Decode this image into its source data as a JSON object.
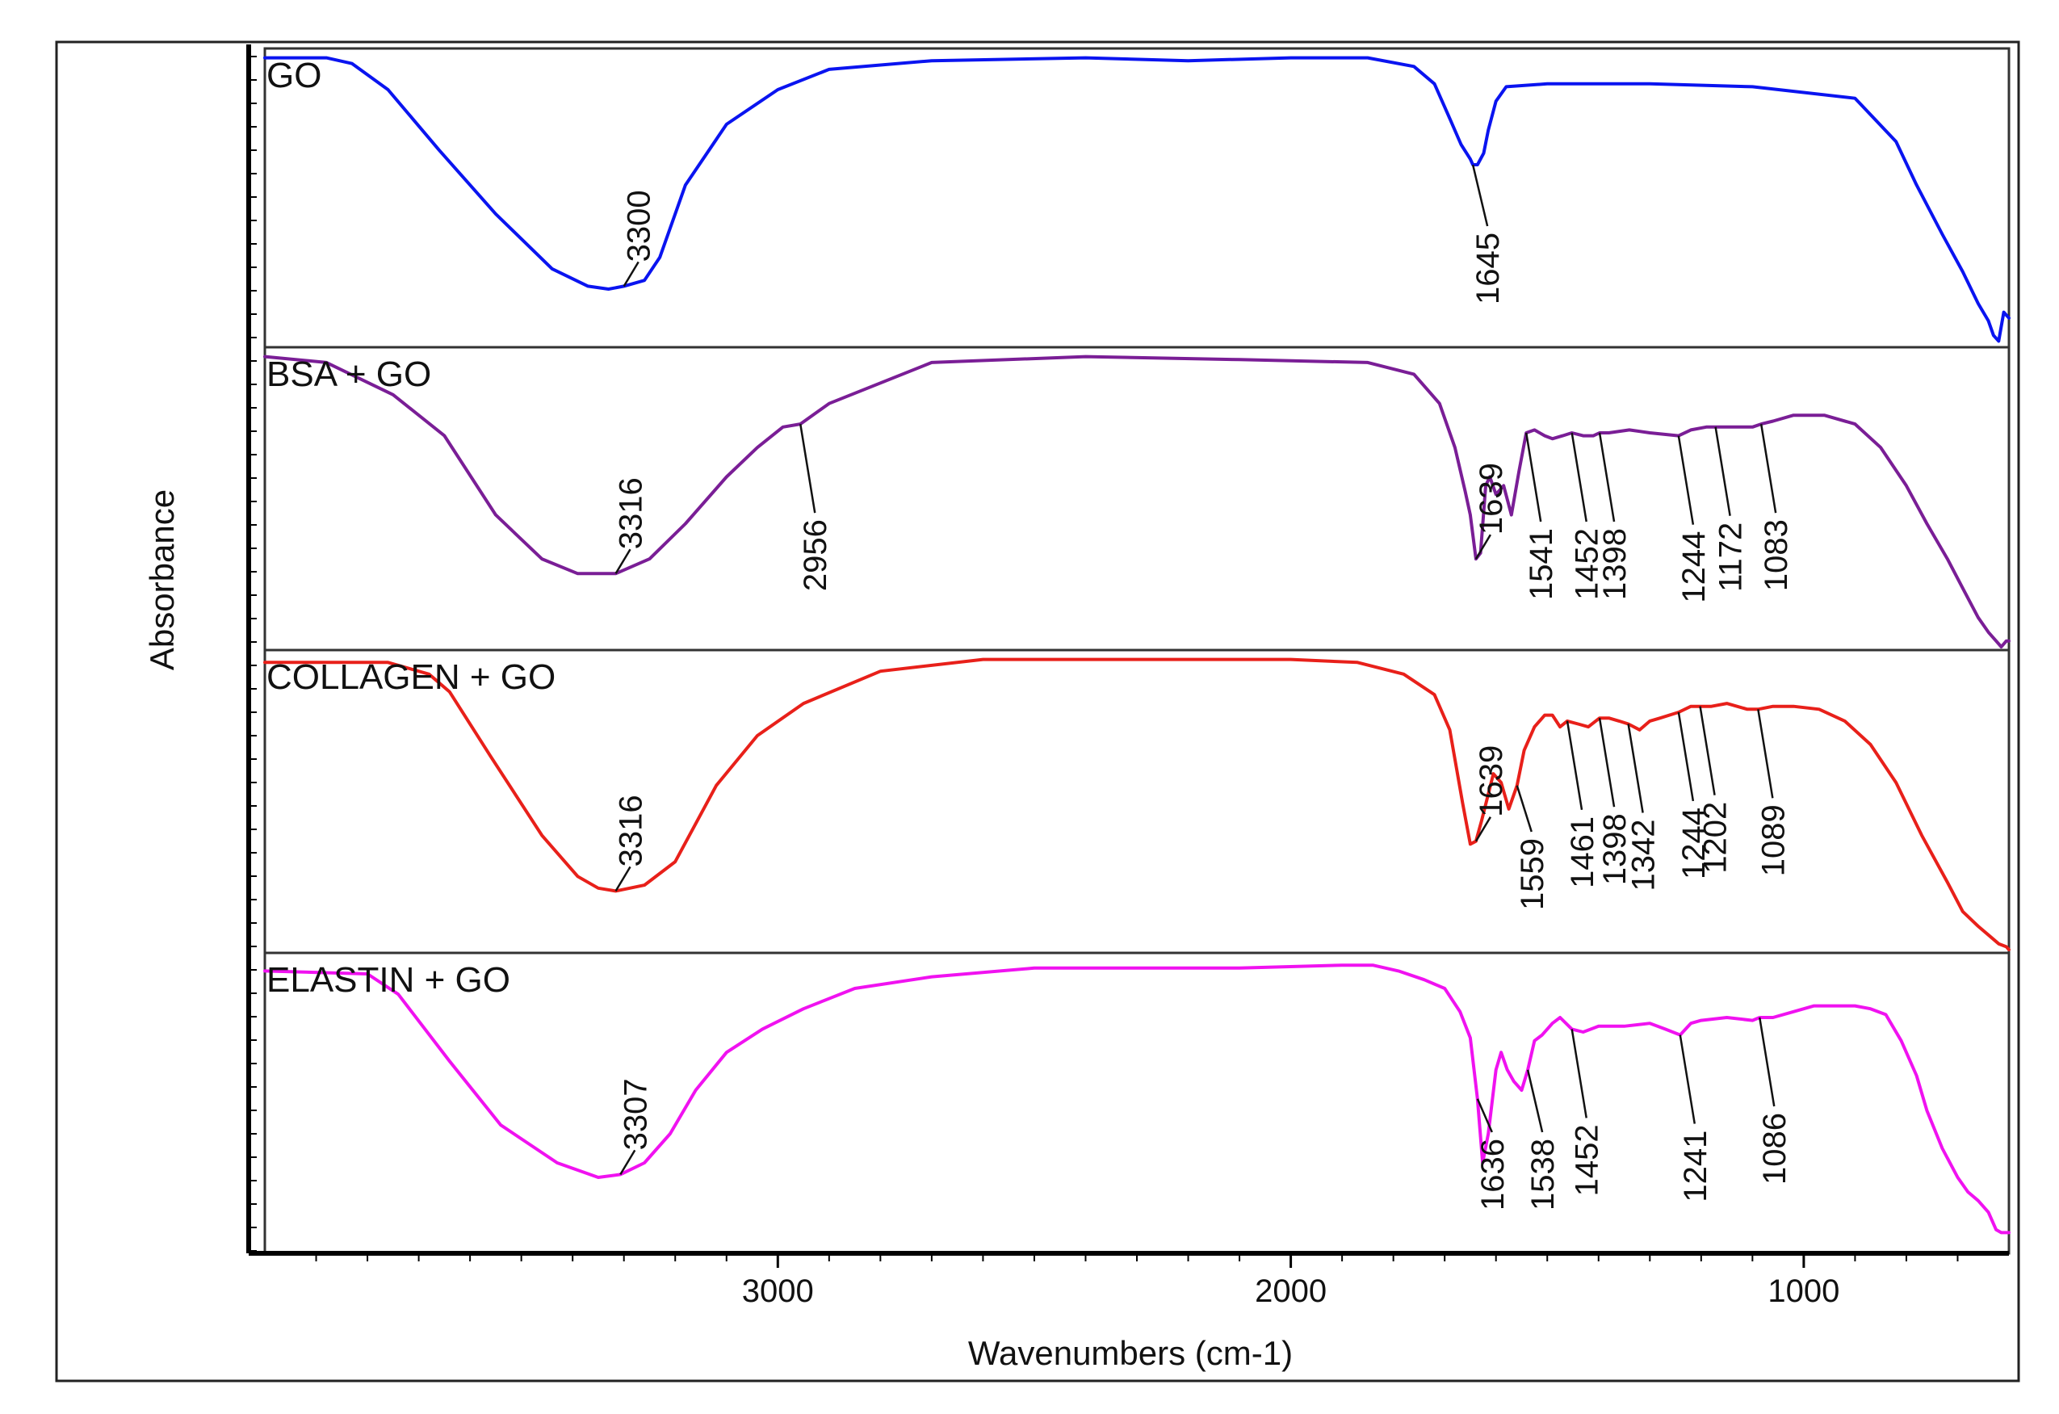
{
  "chart_data": {
    "type": "line",
    "title": "",
    "xlabel": "Wavenumbers (cm-1)",
    "ylabel": "Absorbance",
    "xlim": [
      4000,
      600
    ],
    "x_reversed": true,
    "x_ticks": [
      3000,
      2000,
      1000
    ],
    "x_tick_labels": [
      "3000",
      "2000",
      "1000"
    ],
    "grid": false,
    "layout": "stacked-panels",
    "series": [
      {
        "name": "GO",
        "color": "#0a14f0",
        "x": [
          4000,
          3880,
          3830,
          3760,
          3660,
          3550,
          3440,
          3370,
          3330,
          3300,
          3260,
          3230,
          3180,
          3100,
          3000,
          2900,
          2700,
          2400,
          2200,
          2000,
          1850,
          1760,
          1720,
          1690,
          1668,
          1650,
          1645,
          1636,
          1624,
          1615,
          1600,
          1580,
          1500,
          1300,
          1100,
          900,
          820,
          780,
          730,
          690,
          660,
          640,
          630,
          620,
          610,
          600
        ],
        "y": [
          0.99,
          0.99,
          0.97,
          0.88,
          0.67,
          0.45,
          0.26,
          0.2,
          0.19,
          0.2,
          0.22,
          0.3,
          0.55,
          0.76,
          0.88,
          0.95,
          0.98,
          0.99,
          0.98,
          0.99,
          0.99,
          0.96,
          0.9,
          0.78,
          0.69,
          0.64,
          0.62,
          0.62,
          0.66,
          0.74,
          0.84,
          0.89,
          0.9,
          0.9,
          0.89,
          0.85,
          0.7,
          0.55,
          0.38,
          0.25,
          0.14,
          0.08,
          0.03,
          0.01,
          0.11,
          0.09
        ]
      },
      {
        "name": "BSA + GO",
        "color": "#7a1e96",
        "x": [
          4000,
          3880,
          3750,
          3650,
          3550,
          3460,
          3390,
          3316,
          3250,
          3180,
          3100,
          3040,
          2990,
          2956,
          2900,
          2700,
          2400,
          2100,
          1850,
          1760,
          1710,
          1680,
          1660,
          1650,
          1639,
          1630,
          1620,
          1612,
          1600,
          1585,
          1570,
          1555,
          1541,
          1525,
          1505,
          1490,
          1470,
          1452,
          1430,
          1410,
          1398,
          1380,
          1340,
          1300,
          1244,
          1220,
          1190,
          1172,
          1150,
          1100,
          1083,
          1060,
          1020,
          960,
          900,
          850,
          800,
          760,
          720,
          690,
          660,
          640,
          625,
          615,
          605,
          600
        ],
        "y": [
          0.99,
          0.97,
          0.86,
          0.72,
          0.45,
          0.3,
          0.25,
          0.25,
          0.3,
          0.42,
          0.58,
          0.68,
          0.75,
          0.76,
          0.83,
          0.97,
          0.99,
          0.98,
          0.97,
          0.93,
          0.83,
          0.68,
          0.53,
          0.45,
          0.3,
          0.32,
          0.55,
          0.58,
          0.52,
          0.55,
          0.45,
          0.6,
          0.73,
          0.74,
          0.72,
          0.71,
          0.72,
          0.73,
          0.72,
          0.72,
          0.73,
          0.73,
          0.74,
          0.73,
          0.72,
          0.74,
          0.75,
          0.75,
          0.75,
          0.75,
          0.76,
          0.77,
          0.79,
          0.79,
          0.76,
          0.68,
          0.55,
          0.42,
          0.3,
          0.2,
          0.1,
          0.05,
          0.02,
          0.0,
          0.02,
          0.02
        ]
      },
      {
        "name": "COLLAGEN + GO",
        "color": "#e8201a",
        "x": [
          4000,
          3760,
          3680,
          3640,
          3560,
          3460,
          3390,
          3350,
          3316,
          3260,
          3200,
          3120,
          3040,
          2950,
          2800,
          2600,
          2300,
          2000,
          1870,
          1780,
          1720,
          1690,
          1665,
          1650,
          1639,
          1628,
          1618,
          1605,
          1590,
          1575,
          1559,
          1545,
          1525,
          1505,
          1490,
          1475,
          1461,
          1440,
          1420,
          1398,
          1380,
          1360,
          1342,
          1320,
          1300,
          1280,
          1244,
          1220,
          1202,
          1180,
          1150,
          1110,
          1089,
          1060,
          1020,
          970,
          920,
          870,
          820,
          770,
          720,
          690,
          660,
          640,
          620,
          605,
          600
        ],
        "y": [
          0.98,
          0.98,
          0.94,
          0.88,
          0.66,
          0.39,
          0.25,
          0.21,
          0.2,
          0.22,
          0.3,
          0.56,
          0.73,
          0.84,
          0.95,
          0.99,
          0.99,
          0.99,
          0.98,
          0.94,
          0.87,
          0.75,
          0.5,
          0.36,
          0.37,
          0.44,
          0.51,
          0.6,
          0.57,
          0.48,
          0.56,
          0.68,
          0.76,
          0.8,
          0.8,
          0.76,
          0.78,
          0.77,
          0.76,
          0.79,
          0.79,
          0.78,
          0.77,
          0.75,
          0.78,
          0.79,
          0.81,
          0.83,
          0.83,
          0.83,
          0.84,
          0.82,
          0.82,
          0.83,
          0.83,
          0.82,
          0.78,
          0.7,
          0.57,
          0.39,
          0.23,
          0.13,
          0.08,
          0.05,
          0.02,
          0.01,
          0.0
        ]
      },
      {
        "name": "ELASTIN + GO",
        "color": "#f012f0",
        "x": [
          4000,
          3800,
          3740,
          3640,
          3540,
          3430,
          3350,
          3307,
          3260,
          3210,
          3160,
          3100,
          3030,
          2950,
          2850,
          2700,
          2500,
          2300,
          2100,
          1900,
          1840,
          1790,
          1740,
          1700,
          1670,
          1650,
          1636,
          1626,
          1615,
          1600,
          1590,
          1578,
          1565,
          1550,
          1538,
          1525,
          1510,
          1490,
          1475,
          1452,
          1430,
          1400,
          1350,
          1300,
          1270,
          1241,
          1220,
          1200,
          1150,
          1100,
          1086,
          1060,
          1020,
          980,
          940,
          900,
          870,
          840,
          810,
          780,
          760,
          730,
          700,
          680,
          660,
          640,
          625,
          615,
          600
        ],
        "y": [
          0.96,
          0.95,
          0.88,
          0.65,
          0.43,
          0.3,
          0.25,
          0.26,
          0.3,
          0.4,
          0.55,
          0.68,
          0.76,
          0.83,
          0.9,
          0.94,
          0.97,
          0.97,
          0.97,
          0.98,
          0.98,
          0.96,
          0.93,
          0.9,
          0.82,
          0.73,
          0.52,
          0.3,
          0.4,
          0.62,
          0.68,
          0.62,
          0.58,
          0.55,
          0.62,
          0.72,
          0.74,
          0.78,
          0.8,
          0.76,
          0.75,
          0.77,
          0.77,
          0.78,
          0.76,
          0.74,
          0.78,
          0.79,
          0.8,
          0.79,
          0.8,
          0.8,
          0.82,
          0.84,
          0.84,
          0.84,
          0.83,
          0.81,
          0.72,
          0.6,
          0.48,
          0.35,
          0.25,
          0.2,
          0.17,
          0.13,
          0.07,
          0.06,
          0.06
        ]
      }
    ],
    "annotations": [
      {
        "panel": 0,
        "label": "3300",
        "x": 3300
      },
      {
        "panel": 0,
        "label": "1645",
        "x": 1645
      },
      {
        "panel": 1,
        "label": "3316",
        "x": 3316
      },
      {
        "panel": 1,
        "label": "2956",
        "x": 2956
      },
      {
        "panel": 1,
        "label": "1639",
        "x": 1639
      },
      {
        "panel": 1,
        "label": "1541",
        "x": 1541
      },
      {
        "panel": 1,
        "label": "1452",
        "x": 1452
      },
      {
        "panel": 1,
        "label": "1398",
        "x": 1398
      },
      {
        "panel": 1,
        "label": "1244",
        "x": 1244
      },
      {
        "panel": 1,
        "label": "1172",
        "x": 1172
      },
      {
        "panel": 1,
        "label": "1083",
        "x": 1083
      },
      {
        "panel": 2,
        "label": "3316",
        "x": 3316
      },
      {
        "panel": 2,
        "label": "1639",
        "x": 1639
      },
      {
        "panel": 2,
        "label": "1559",
        "x": 1559
      },
      {
        "panel": 2,
        "label": "1461",
        "x": 1461
      },
      {
        "panel": 2,
        "label": "1398",
        "x": 1398
      },
      {
        "panel": 2,
        "label": "1342",
        "x": 1342
      },
      {
        "panel": 2,
        "label": "1244",
        "x": 1244
      },
      {
        "panel": 2,
        "label": "1202",
        "x": 1202
      },
      {
        "panel": 2,
        "label": "1089",
        "x": 1089
      },
      {
        "panel": 3,
        "label": "3307",
        "x": 3307
      },
      {
        "panel": 3,
        "label": "1636",
        "x": 1636
      },
      {
        "panel": 3,
        "label": "1538",
        "x": 1538
      },
      {
        "panel": 3,
        "label": "1452",
        "x": 1452
      },
      {
        "panel": 3,
        "label": "1241",
        "x": 1241
      },
      {
        "panel": 3,
        "label": "1086",
        "x": 1086
      }
    ]
  }
}
